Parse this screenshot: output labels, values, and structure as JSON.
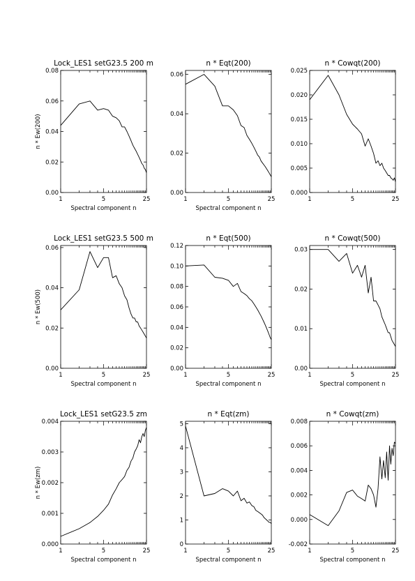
{
  "chart_data": [
    {
      "type": "line",
      "title": "Lock_LES1 setG23.5 200 m",
      "xlabel": "Spectral component n",
      "ylabel": "n * Ew(200)",
      "xscale": "log",
      "xlim": [
        1,
        25
      ],
      "xticks": [
        "1",
        "5",
        "25"
      ],
      "ylim": [
        0,
        0.08
      ],
      "yticks": [
        "0.00",
        "0.02",
        "0.04",
        "0.06",
        "0.08"
      ],
      "series": [
        {
          "x": [
            1,
            2,
            3,
            4,
            5,
            6,
            7,
            8,
            9,
            10,
            11,
            12,
            13,
            14,
            15,
            16,
            17,
            18,
            19,
            20,
            21,
            22,
            23,
            24,
            25
          ],
          "y": [
            0.044,
            0.058,
            0.06,
            0.054,
            0.055,
            0.054,
            0.05,
            0.049,
            0.047,
            0.043,
            0.043,
            0.04,
            0.037,
            0.034,
            0.031,
            0.029,
            0.027,
            0.025,
            0.023,
            0.021,
            0.019,
            0.018,
            0.016,
            0.015,
            0.013
          ]
        }
      ]
    },
    {
      "type": "line",
      "title": "n * Eqt(200)",
      "xlabel": "Spectral component n",
      "ylabel": "",
      "xscale": "log",
      "xlim": [
        1,
        25
      ],
      "xticks": [
        "1",
        "5",
        "25"
      ],
      "ylim": [
        0,
        0.062
      ],
      "yticks": [
        "0.00",
        "0.02",
        "0.04",
        "0.06"
      ],
      "series": [
        {
          "x": [
            1,
            2,
            3,
            4,
            5,
            6,
            7,
            8,
            9,
            10,
            11,
            12,
            13,
            14,
            15,
            16,
            17,
            18,
            19,
            20,
            21,
            22,
            23,
            24,
            25
          ],
          "y": [
            0.055,
            0.06,
            0.054,
            0.044,
            0.044,
            0.042,
            0.039,
            0.034,
            0.033,
            0.029,
            0.027,
            0.025,
            0.023,
            0.021,
            0.019,
            0.018,
            0.016,
            0.015,
            0.014,
            0.013,
            0.012,
            0.011,
            0.01,
            0.009,
            0.008
          ]
        }
      ]
    },
    {
      "type": "line",
      "title": "n * Cowqt(200)",
      "xlabel": "",
      "ylabel": "",
      "xscale": "log",
      "xlim": [
        1,
        25
      ],
      "xticks": [
        "1",
        "5",
        "25"
      ],
      "ylim": [
        0,
        0.025
      ],
      "yticks": [
        "0.000",
        "0.005",
        "0.010",
        "0.015",
        "0.020",
        "0.025"
      ],
      "series": [
        {
          "x": [
            1,
            2,
            3,
            4,
            5,
            6,
            7,
            8,
            9,
            10,
            11,
            12,
            13,
            14,
            15,
            16,
            17,
            18,
            19,
            20,
            21,
            22,
            23,
            24,
            25
          ],
          "y": [
            0.019,
            0.024,
            0.02,
            0.016,
            0.014,
            0.013,
            0.012,
            0.0095,
            0.011,
            0.0095,
            0.008,
            0.006,
            0.0065,
            0.0055,
            0.006,
            0.005,
            0.0045,
            0.004,
            0.0035,
            0.0035,
            0.003,
            0.0028,
            0.0025,
            0.003,
            0.0022
          ]
        }
      ]
    },
    {
      "type": "line",
      "title": "Lock_LES1 setG23.5 500 m",
      "xlabel": "Spectral component n",
      "ylabel": "n * Ew(500)",
      "xscale": "log",
      "xlim": [
        1,
        25
      ],
      "xticks": [
        "1",
        "5",
        "25"
      ],
      "ylim": [
        0,
        0.061
      ],
      "yticks": [
        "0.00",
        "0.02",
        "0.04",
        "0.06"
      ],
      "series": [
        {
          "x": [
            1,
            2,
            3,
            4,
            5,
            6,
            7,
            8,
            9,
            10,
            11,
            12,
            13,
            14,
            15,
            16,
            17,
            18,
            19,
            20,
            21,
            22,
            23,
            24,
            25
          ],
          "y": [
            0.029,
            0.039,
            0.058,
            0.05,
            0.055,
            0.055,
            0.045,
            0.046,
            0.042,
            0.04,
            0.036,
            0.034,
            0.03,
            0.027,
            0.025,
            0.025,
            0.023,
            0.023,
            0.021,
            0.02,
            0.019,
            0.018,
            0.017,
            0.016,
            0.015
          ]
        }
      ]
    },
    {
      "type": "line",
      "title": "n * Eqt(500)",
      "xlabel": "Spectral component n",
      "ylabel": "",
      "xscale": "log",
      "xlim": [
        1,
        25
      ],
      "xticks": [
        "1",
        "5",
        "25"
      ],
      "ylim": [
        0,
        0.12
      ],
      "yticks": [
        "0.00",
        "0.02",
        "0.04",
        "0.06",
        "0.08",
        "0.10",
        "0.12"
      ],
      "series": [
        {
          "x": [
            1,
            2,
            3,
            4,
            5,
            6,
            7,
            8,
            9,
            10,
            11,
            12,
            13,
            14,
            15,
            16,
            17,
            18,
            19,
            20,
            21,
            22,
            23,
            24,
            25
          ],
          "y": [
            0.1,
            0.101,
            0.089,
            0.088,
            0.086,
            0.08,
            0.083,
            0.075,
            0.073,
            0.071,
            0.068,
            0.066,
            0.063,
            0.06,
            0.057,
            0.054,
            0.051,
            0.048,
            0.045,
            0.042,
            0.039,
            0.036,
            0.033,
            0.03,
            0.028
          ]
        }
      ]
    },
    {
      "type": "line",
      "title": "n * Cowqt(500)",
      "xlabel": "Spectral component n",
      "ylabel": "",
      "xscale": "log",
      "xlim": [
        1,
        25
      ],
      "xticks": [
        "1",
        "5",
        "25"
      ],
      "ylim": [
        0,
        0.031
      ],
      "yticks": [
        "0.00",
        "0.01",
        "0.02",
        "0.03"
      ],
      "series": [
        {
          "x": [
            1,
            2,
            3,
            4,
            5,
            6,
            7,
            8,
            9,
            10,
            11,
            12,
            13,
            14,
            15,
            16,
            17,
            18,
            19,
            20,
            21,
            22,
            23,
            24,
            25
          ],
          "y": [
            0.03,
            0.03,
            0.027,
            0.029,
            0.024,
            0.026,
            0.023,
            0.026,
            0.019,
            0.023,
            0.017,
            0.017,
            0.016,
            0.015,
            0.013,
            0.012,
            0.011,
            0.01,
            0.009,
            0.009,
            0.008,
            0.007,
            0.0065,
            0.006,
            0.0055
          ]
        }
      ]
    },
    {
      "type": "line",
      "title": "Lock_LES1 setG23.5  zm",
      "xlabel": "Spectral component n",
      "ylabel": "n * Ew(zm)",
      "xscale": "log",
      "xlim": [
        1,
        25
      ],
      "xticks": [
        "1",
        "5",
        "25"
      ],
      "ylim": [
        0,
        0.004
      ],
      "yticks": [
        "0.000",
        "0.001",
        "0.002",
        "0.003",
        "0.004"
      ],
      "series": [
        {
          "x": [
            1,
            2,
            3,
            4,
            5,
            6,
            7,
            8,
            9,
            10,
            11,
            12,
            13,
            14,
            15,
            16,
            17,
            18,
            19,
            20,
            21,
            22,
            23,
            24,
            25
          ],
          "y": [
            0.00025,
            0.0005,
            0.0007,
            0.0009,
            0.0011,
            0.0013,
            0.0016,
            0.0018,
            0.002,
            0.0021,
            0.0022,
            0.0024,
            0.0025,
            0.0027,
            0.0028,
            0.003,
            0.0031,
            0.0032,
            0.0034,
            0.0033,
            0.0035,
            0.0036,
            0.0035,
            0.0037,
            0.0038
          ]
        }
      ]
    },
    {
      "type": "line",
      "title": "n * Eqt(zm)",
      "xlabel": "Spectral component n",
      "ylabel": "",
      "xscale": "log",
      "xlim": [
        1,
        25
      ],
      "xticks": [
        "1",
        "5",
        "25"
      ],
      "ylim": [
        0,
        5.1
      ],
      "yticks": [
        "0",
        "1",
        "2",
        "3",
        "4",
        "5"
      ],
      "series": [
        {
          "x": [
            1,
            2,
            3,
            4,
            5,
            6,
            7,
            8,
            9,
            10,
            11,
            12,
            13,
            14,
            15,
            16,
            17,
            18,
            19,
            20,
            21,
            22,
            23,
            24,
            25
          ],
          "y": [
            4.9,
            2.0,
            2.1,
            2.3,
            2.2,
            2.0,
            2.2,
            1.8,
            1.9,
            1.7,
            1.75,
            1.6,
            1.55,
            1.4,
            1.35,
            1.3,
            1.25,
            1.2,
            1.1,
            1.05,
            1.0,
            0.95,
            0.9,
            0.9,
            0.85
          ]
        }
      ]
    },
    {
      "type": "line",
      "title": "n * Cowqt(zm)",
      "xlabel": "Spectral component n",
      "ylabel": "",
      "xscale": "log",
      "xlim": [
        1,
        25
      ],
      "xticks": [
        "1",
        "5",
        "25"
      ],
      "ylim": [
        -0.002,
        0.008
      ],
      "yticks": [
        "-0.002",
        "0.000",
        "0.002",
        "0.004",
        "0.006",
        "0.008"
      ],
      "series": [
        {
          "x": [
            1,
            2,
            3,
            4,
            5,
            6,
            7,
            8,
            9,
            10,
            11,
            12,
            13,
            14,
            15,
            16,
            17,
            18,
            19,
            20,
            21,
            22,
            23,
            24,
            25
          ],
          "y": [
            0.0004,
            -0.0005,
            0.0007,
            0.0022,
            0.0024,
            0.0019,
            0.0017,
            0.0015,
            0.0028,
            0.0025,
            0.002,
            0.001,
            0.0025,
            0.0051,
            0.0033,
            0.0048,
            0.0034,
            0.0055,
            0.0032,
            0.006,
            0.0045,
            0.0058,
            0.0052,
            0.0063,
            0.0062
          ]
        }
      ]
    }
  ]
}
